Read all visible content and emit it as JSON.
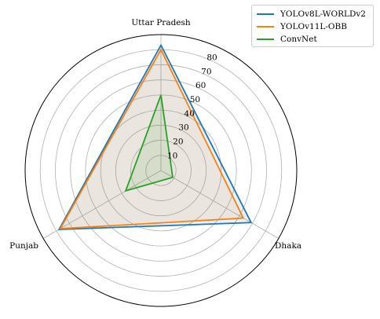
{
  "chart_data": {
    "type": "radar",
    "axes": [
      "Uttar Pradesh",
      "Dhaka",
      "Punjab"
    ],
    "rmax": 90,
    "rticks": [
      10,
      20,
      30,
      40,
      50,
      60,
      70,
      80
    ],
    "grid": true,
    "legend_position": "top-right",
    "series": [
      {
        "name": "YOLOv8L-WORLDv2",
        "values": [
          83,
          69,
          78
        ],
        "color": "#1f77b4"
      },
      {
        "name": "YOLOv11L-OBB",
        "values": [
          80,
          63,
          77
        ],
        "color": "#ff7f0e"
      },
      {
        "name": "ConvNet",
        "values": [
          50,
          9,
          27
        ],
        "color": "#2ca02c"
      }
    ]
  }
}
